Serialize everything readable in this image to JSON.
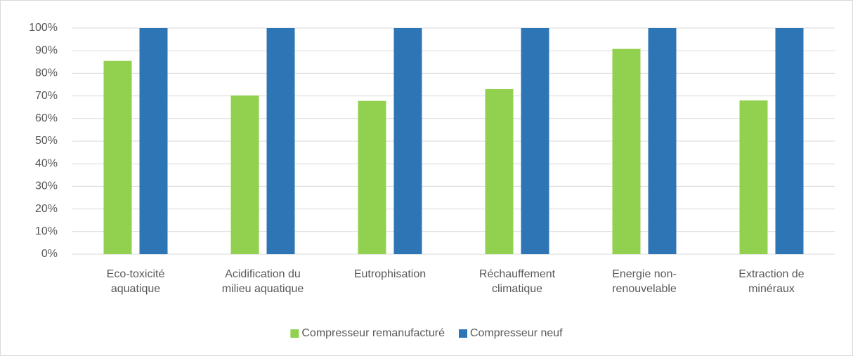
{
  "chart_data": {
    "type": "bar",
    "categories": [
      "Eco-toxicité aquatique",
      "Acidification du milieu aquatique",
      "Eutrophisation",
      "Réchauffement climatique",
      "Energie non-renouvelable",
      "Extraction de minéraux"
    ],
    "series": [
      {
        "name": "Compresseur remanufacturé",
        "color": "#92d050",
        "values": [
          85.5,
          70.2,
          67.8,
          73,
          90.8,
          68
        ]
      },
      {
        "name": "Compresseur neuf",
        "color": "#2e75b6",
        "values": [
          100,
          100,
          100,
          100,
          100,
          100
        ]
      }
    ],
    "ylim": [
      0,
      100
    ],
    "yticks": [
      {
        "value": 0,
        "label": "0%"
      },
      {
        "value": 10,
        "label": "10%"
      },
      {
        "value": 20,
        "label": "20%"
      },
      {
        "value": 30,
        "label": "30%"
      },
      {
        "value": 40,
        "label": "40%"
      },
      {
        "value": 50,
        "label": "50%"
      },
      {
        "value": 60,
        "label": "60%"
      },
      {
        "value": 70,
        "label": "70%"
      },
      {
        "value": 80,
        "label": "80%"
      },
      {
        "value": 90,
        "label": "90%"
      },
      {
        "value": 100,
        "label": "100%"
      }
    ],
    "grid": true,
    "legend": "bottom"
  }
}
